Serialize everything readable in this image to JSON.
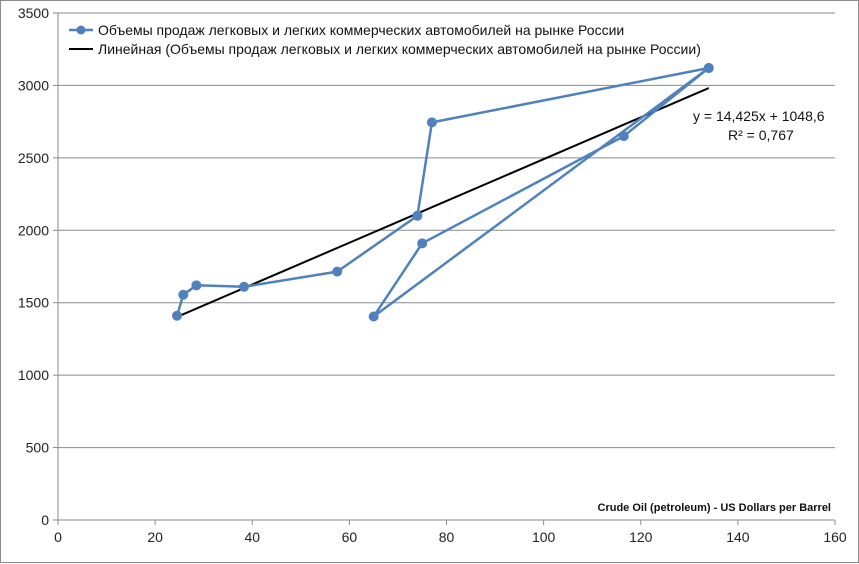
{
  "chart_data": {
    "type": "scatter",
    "title": "",
    "xlabel": "Crude Oil (petroleum) - US Dollars  per Barrel",
    "ylabel": "",
    "xlim": [
      0,
      160
    ],
    "ylim": [
      0,
      3500
    ],
    "x_ticks": [
      0,
      20,
      40,
      60,
      80,
      100,
      120,
      140,
      160
    ],
    "y_ticks": [
      0,
      500,
      1000,
      1500,
      2000,
      2500,
      3000,
      3500
    ],
    "grid": true,
    "legend_position": "top-left",
    "series": [
      {
        "name": "Объемы продаж легковых и легких коммерческих автомобилей на рынке России",
        "color": "#4f81bd",
        "markers": true,
        "points": [
          {
            "x": 24.5,
            "y": 1410
          },
          {
            "x": 25.8,
            "y": 1555
          },
          {
            "x": 28.5,
            "y": 1620
          },
          {
            "x": 38.3,
            "y": 1610
          },
          {
            "x": 57.5,
            "y": 1715
          },
          {
            "x": 74.0,
            "y": 2100
          },
          {
            "x": 77.0,
            "y": 2745
          },
          {
            "x": 134.0,
            "y": 3120
          },
          {
            "x": 116.5,
            "y": 2650
          },
          {
            "x": 75.0,
            "y": 1910
          },
          {
            "x": 65.0,
            "y": 1405
          },
          {
            "x": 134.0,
            "y": 3120
          }
        ]
      }
    ],
    "trendline": {
      "name": "Линейная (Объемы продаж легковых и легких коммерческих автомобилей на рынке России)",
      "color": "#000000",
      "slope": 14.425,
      "intercept": 1048.6,
      "x_start": 24.5,
      "x_end": 134.0,
      "equation": "y = 14,425x + 1048,6",
      "r_squared": "R² = 0,767"
    }
  }
}
